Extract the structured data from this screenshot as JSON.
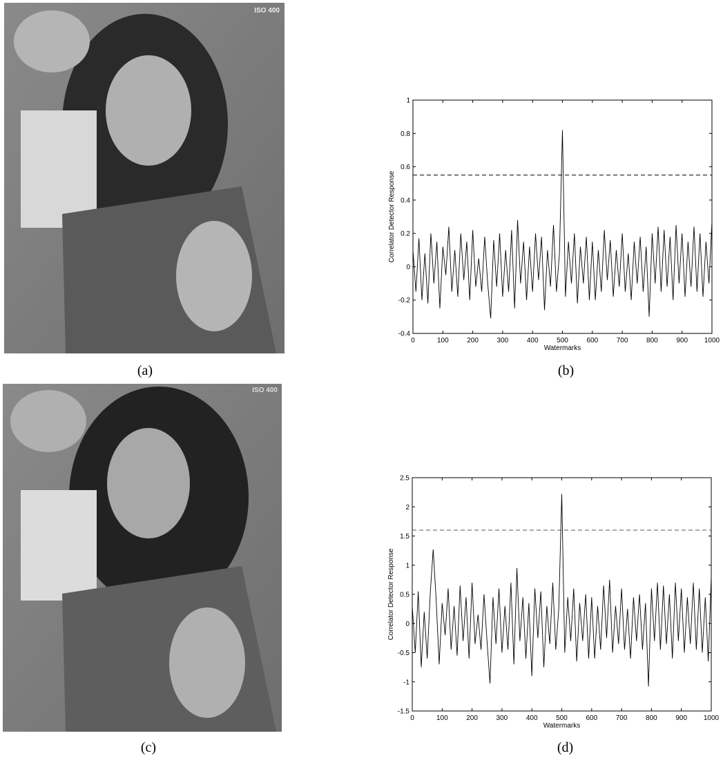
{
  "panels": [
    {
      "caption": "(a)",
      "overlay": "ISO 400"
    },
    {
      "caption": "(c)",
      "overlay": "ISO 400"
    }
  ],
  "chart_data": [
    {
      "type": "line",
      "caption": "(b)",
      "xlabel": "Watermarks",
      "ylabel": "Correlator Detector Response",
      "x": [
        0,
        10,
        20,
        30,
        40,
        50,
        60,
        70,
        80,
        90,
        100,
        110,
        120,
        130,
        140,
        150,
        160,
        170,
        180,
        190,
        200,
        210,
        220,
        230,
        240,
        250,
        260,
        270,
        280,
        290,
        300,
        310,
        320,
        330,
        340,
        350,
        360,
        370,
        380,
        390,
        400,
        410,
        420,
        430,
        440,
        450,
        460,
        470,
        480,
        490,
        500,
        510,
        520,
        530,
        540,
        550,
        560,
        570,
        580,
        590,
        600,
        610,
        620,
        630,
        640,
        650,
        660,
        670,
        680,
        690,
        700,
        710,
        720,
        730,
        740,
        750,
        760,
        770,
        780,
        790,
        800,
        810,
        820,
        830,
        840,
        850,
        860,
        870,
        880,
        890,
        900,
        910,
        920,
        930,
        940,
        950,
        960,
        970,
        980,
        990,
        1000
      ],
      "series": [
        {
          "color": "#000000",
          "values": [
            0.1,
            -0.15,
            0.17,
            -0.2,
            0.08,
            -0.22,
            0.2,
            -0.1,
            0.15,
            -0.25,
            0.12,
            -0.05,
            0.24,
            -0.15,
            0.1,
            -0.18,
            0.2,
            -0.08,
            0.15,
            -0.2,
            0.22,
            -0.12,
            0.05,
            -0.15,
            0.18,
            -0.1,
            -0.31,
            0.16,
            -0.12,
            0.2,
            -0.18,
            0.1,
            -0.15,
            0.22,
            -0.25,
            0.28,
            -0.1,
            0.15,
            -0.2,
            0.12,
            -0.15,
            0.2,
            -0.08,
            0.18,
            -0.26,
            0.1,
            -0.12,
            0.25,
            -0.15,
            0.08,
            0.82,
            -0.18,
            0.15,
            -0.1,
            0.2,
            -0.22,
            0.12,
            -0.1,
            0.18,
            -0.2,
            0.15,
            -0.2,
            0.1,
            -0.15,
            0.22,
            -0.08,
            0.16,
            -0.18,
            0.1,
            -0.12,
            0.2,
            -0.15,
            0.08,
            -0.2,
            0.15,
            -0.1,
            0.18,
            -0.15,
            0.12,
            -0.3,
            0.2,
            -0.1,
            0.24,
            -0.15,
            0.22,
            -0.12,
            0.18,
            -0.2,
            0.25,
            -0.1,
            0.2,
            -0.18,
            0.15,
            -0.12,
            0.24,
            -0.15,
            0.2,
            -0.18,
            0.15,
            -0.1,
            0.27
          ]
        }
      ],
      "threshold": 0.55,
      "threshold_color": "#000000",
      "xlim": [
        0,
        1000
      ],
      "ylim": [
        -0.4,
        1
      ],
      "xticks": [
        0,
        100,
        200,
        300,
        400,
        500,
        600,
        700,
        800,
        900,
        1000
      ],
      "yticks": [
        -0.4,
        -0.2,
        0,
        0.2,
        0.4,
        0.6,
        0.8,
        1
      ]
    },
    {
      "type": "line",
      "caption": "(d)",
      "xlabel": "Watermarks",
      "ylabel": "Correlator Detector Response",
      "x": [
        0,
        10,
        20,
        30,
        40,
        50,
        60,
        70,
        80,
        90,
        100,
        110,
        120,
        130,
        140,
        150,
        160,
        170,
        180,
        190,
        200,
        210,
        220,
        230,
        240,
        250,
        260,
        270,
        280,
        290,
        300,
        310,
        320,
        330,
        340,
        350,
        360,
        370,
        380,
        390,
        400,
        410,
        420,
        430,
        440,
        450,
        460,
        470,
        480,
        490,
        500,
        510,
        520,
        530,
        540,
        550,
        560,
        570,
        580,
        590,
        600,
        610,
        620,
        630,
        640,
        650,
        660,
        670,
        680,
        690,
        700,
        710,
        720,
        730,
        740,
        750,
        760,
        770,
        780,
        790,
        800,
        810,
        820,
        830,
        840,
        850,
        860,
        870,
        880,
        890,
        900,
        910,
        920,
        930,
        940,
        950,
        960,
        970,
        980,
        990,
        1000
      ],
      "series": [
        {
          "color": "#000000",
          "values": [
            0.3,
            -0.5,
            0.55,
            -0.75,
            0.2,
            -0.6,
            0.5,
            1.27,
            0.4,
            -0.7,
            0.35,
            -0.2,
            0.6,
            -0.45,
            0.3,
            -0.55,
            0.65,
            -0.3,
            0.45,
            -0.6,
            0.7,
            -0.35,
            0.15,
            -0.45,
            0.5,
            -0.3,
            -1.03,
            0.45,
            -0.35,
            0.6,
            -0.5,
            0.3,
            -0.45,
            0.7,
            -0.7,
            0.95,
            -0.3,
            0.45,
            -0.6,
            0.35,
            -0.9,
            0.6,
            -0.25,
            0.55,
            -0.75,
            0.3,
            -0.35,
            0.7,
            -0.45,
            0.25,
            2.22,
            -0.5,
            0.45,
            -0.3,
            0.6,
            -0.65,
            0.35,
            -0.3,
            0.5,
            -0.6,
            0.45,
            -0.6,
            0.3,
            -0.45,
            0.65,
            -0.25,
            0.75,
            -0.5,
            0.3,
            -0.35,
            0.6,
            -0.45,
            0.25,
            -0.6,
            0.45,
            -0.3,
            0.5,
            -0.45,
            0.35,
            -1.08,
            0.6,
            -0.3,
            0.7,
            -0.45,
            0.65,
            -0.35,
            0.5,
            -0.6,
            0.7,
            -0.3,
            0.6,
            -0.5,
            0.45,
            -0.35,
            0.7,
            -0.45,
            0.6,
            -0.5,
            0.45,
            -0.65,
            0.8
          ]
        }
      ],
      "threshold": 1.6,
      "threshold_color": "#555555",
      "xlim": [
        0,
        1000
      ],
      "ylim": [
        -1.5,
        2.5
      ],
      "xticks": [
        0,
        100,
        200,
        300,
        400,
        500,
        600,
        700,
        800,
        900,
        1000
      ],
      "yticks": [
        -1.5,
        -1,
        -0.5,
        0,
        0.5,
        1,
        1.5,
        2,
        2.5
      ]
    }
  ]
}
